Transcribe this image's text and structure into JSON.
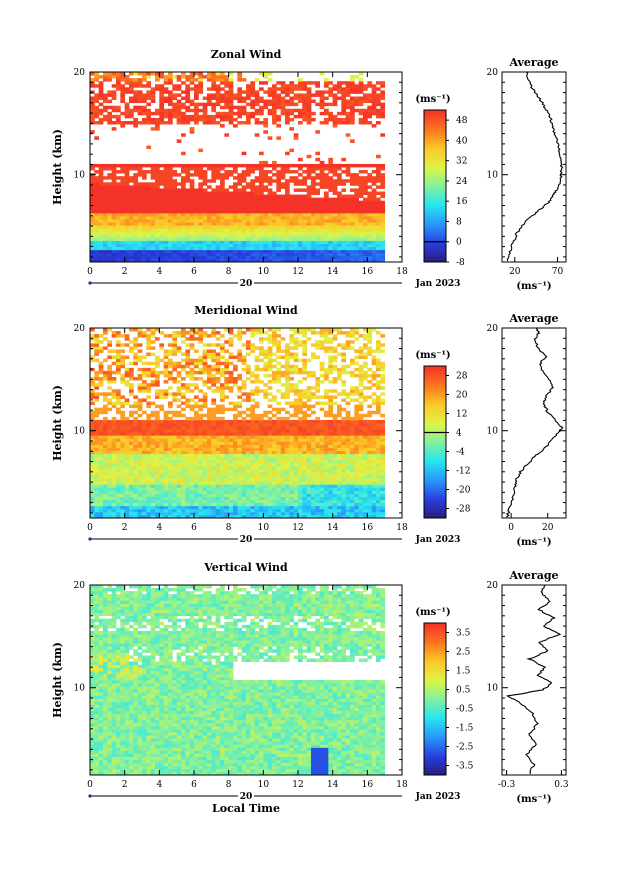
{
  "chart_data": [
    {
      "type": "heatmap",
      "title": "Zonal Wind",
      "ylabel": "Height (km)",
      "x_ticks": [
        "0",
        "2",
        "4",
        "6",
        "8",
        "10",
        "12",
        "14",
        "16",
        "18"
      ],
      "y_ticks": [
        "20",
        "10"
      ],
      "xlim": [
        0,
        18
      ],
      "ylim": [
        1.5,
        20
      ],
      "data_x_range": [
        0,
        17
      ],
      "date_label": "20",
      "month_label": "Jan 2023",
      "colorbar": {
        "unit": "(ms⁻¹)",
        "ticks": [
          "48",
          "40",
          "32",
          "24",
          "16",
          "8",
          "0",
          "-8"
        ],
        "range": [
          -8,
          52
        ]
      },
      "profile": {
        "title": "Average",
        "x_ticks": [
          "20",
          "70"
        ],
        "xlim": [
          5,
          80
        ],
        "y_ticks": [
          "20",
          "10"
        ],
        "xlabel": "(ms⁻¹)",
        "points": [
          [
            12,
            1.6
          ],
          [
            14,
            2.5
          ],
          [
            17,
            3.2
          ],
          [
            22,
            4.2
          ],
          [
            30,
            5.2
          ],
          [
            40,
            6.0
          ],
          [
            50,
            6.6
          ],
          [
            58,
            7.2
          ],
          [
            64,
            7.8
          ],
          [
            68,
            8.4
          ],
          [
            72,
            9.0
          ],
          [
            74,
            9.8
          ],
          [
            75,
            10.6
          ],
          [
            74,
            11.4
          ],
          [
            73,
            12.2
          ],
          [
            71,
            13.0
          ],
          [
            68,
            13.8
          ],
          [
            64,
            14.6
          ],
          [
            62,
            15.4
          ],
          [
            58,
            16.2
          ],
          [
            52,
            17.0
          ],
          [
            46,
            17.8
          ],
          [
            40,
            18.5
          ],
          [
            36,
            19.2
          ],
          [
            34,
            20
          ]
        ]
      }
    },
    {
      "type": "heatmap",
      "title": "Meridional Wind",
      "ylabel": "Height (km)",
      "x_ticks": [
        "0",
        "2",
        "4",
        "6",
        "8",
        "10",
        "12",
        "14",
        "16",
        "18"
      ],
      "y_ticks": [
        "20",
        "10"
      ],
      "xlim": [
        0,
        18
      ],
      "ylim": [
        1.5,
        20
      ],
      "data_x_range": [
        0,
        17
      ],
      "date_label": "20",
      "month_label": "Jan 2023",
      "colorbar": {
        "unit": "(ms⁻¹)",
        "ticks": [
          "28",
          "20",
          "12",
          "4",
          "-4",
          "-12",
          "-20",
          "-28"
        ],
        "range": [
          -32,
          32
        ]
      },
      "profile": {
        "title": "Average",
        "x_ticks": [
          "0",
          "20"
        ],
        "xlim": [
          -5,
          30
        ],
        "y_ticks": [
          "20",
          "10"
        ],
        "xlabel": "(ms⁻¹)",
        "points": [
          [
            -2,
            1.6
          ],
          [
            -1,
            2.5
          ],
          [
            1,
            3.5
          ],
          [
            2,
            4.5
          ],
          [
            3,
            5.2
          ],
          [
            5,
            6.0
          ],
          [
            9,
            6.8
          ],
          [
            13,
            7.5
          ],
          [
            18,
            8.2
          ],
          [
            22,
            9.0
          ],
          [
            26,
            9.8
          ],
          [
            28,
            10.3
          ],
          [
            24,
            11.0
          ],
          [
            20,
            11.8
          ],
          [
            18,
            12.6
          ],
          [
            19,
            13.4
          ],
          [
            23,
            14.2
          ],
          [
            21,
            15.0
          ],
          [
            17,
            15.8
          ],
          [
            16,
            16.6
          ],
          [
            19,
            17.2
          ],
          [
            15,
            18.0
          ],
          [
            13,
            18.8
          ],
          [
            15,
            19.5
          ],
          [
            14,
            20
          ]
        ]
      }
    },
    {
      "type": "heatmap",
      "title": "Vertical Wind",
      "ylabel": "Height (km)",
      "xlabel": "Local Time",
      "x_ticks": [
        "0",
        "2",
        "4",
        "6",
        "8",
        "10",
        "12",
        "14",
        "16",
        "18"
      ],
      "y_ticks": [
        "20",
        "10"
      ],
      "xlim": [
        0,
        18
      ],
      "ylim": [
        1.5,
        20
      ],
      "data_x_range": [
        0,
        17
      ],
      "date_label": "20",
      "month_label": "Jan 2023",
      "colorbar": {
        "unit": "(ms⁻¹)",
        "ticks": [
          "3.5",
          "2.5",
          "1.5",
          "0.5",
          "-0.5",
          "-1.5",
          "-2.5",
          "-3.5"
        ],
        "range": [
          -4,
          4
        ]
      },
      "profile": {
        "title": "Average",
        "x_ticks": [
          "-0.3",
          "0.3"
        ],
        "xlim": [
          -0.35,
          0.35
        ],
        "y_ticks": [
          "20",
          "10"
        ],
        "xlabel": "(ms⁻¹)",
        "points": [
          [
            -0.05,
            1.6
          ],
          [
            0.0,
            2.5
          ],
          [
            -0.08,
            3.5
          ],
          [
            0.02,
            4.5
          ],
          [
            -0.05,
            5.5
          ],
          [
            0.04,
            6.5
          ],
          [
            -0.02,
            7.5
          ],
          [
            -0.15,
            8.5
          ],
          [
            -0.28,
            9.2
          ],
          [
            0.1,
            9.8
          ],
          [
            0.2,
            10.5
          ],
          [
            0.05,
            11.2
          ],
          [
            0.12,
            12.0
          ],
          [
            -0.05,
            12.8
          ],
          [
            0.15,
            13.6
          ],
          [
            0.05,
            14.4
          ],
          [
            0.28,
            15.2
          ],
          [
            0.1,
            16.0
          ],
          [
            0.22,
            16.8
          ],
          [
            0.05,
            17.6
          ],
          [
            0.18,
            18.4
          ],
          [
            0.08,
            19.2
          ],
          [
            0.12,
            20
          ]
        ]
      }
    }
  ]
}
